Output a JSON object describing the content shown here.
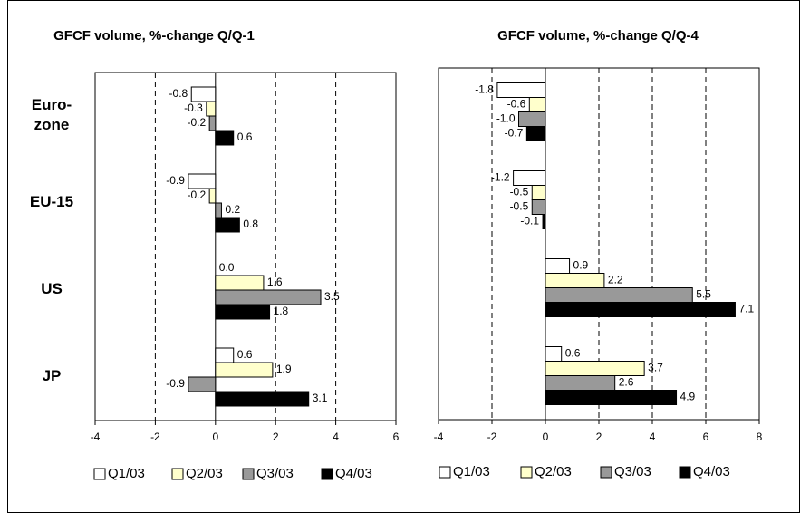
{
  "chart_data": [
    {
      "type": "bar",
      "orientation": "horizontal",
      "title": "GFCF volume, %-change Q/Q-1",
      "categories": [
        "Euro-\nzone",
        "EU-15",
        "US",
        "JP"
      ],
      "series": [
        {
          "name": "Q1/03",
          "color": "#ffffff",
          "values": [
            -0.8,
            -0.9,
            0.0,
            0.6
          ],
          "value_labels": [
            "-0.8",
            "-0.9",
            "0.0",
            "0.6"
          ]
        },
        {
          "name": "Q2/03",
          "color": "#ffffcc",
          "values": [
            -0.3,
            -0.2,
            1.6,
            1.9
          ],
          "value_labels": [
            "-0.3",
            "-0.2",
            "1.6",
            "1.9"
          ]
        },
        {
          "name": "Q3/03",
          "color": "#999999",
          "values": [
            -0.2,
            0.2,
            3.5,
            -0.9
          ],
          "value_labels": [
            "-0.2",
            "0.2",
            "3.5",
            "-0.9"
          ]
        },
        {
          "name": "Q4/03",
          "color": "#000000",
          "values": [
            0.6,
            0.8,
            1.8,
            3.1
          ],
          "value_labels": [
            "0.6",
            "0.8",
            "1.8",
            "3.1"
          ]
        }
      ],
      "xlim": [
        -4,
        6
      ],
      "xticks": [
        -4,
        -2,
        0,
        2,
        4,
        6
      ],
      "grid": true,
      "legend": "bottom"
    },
    {
      "type": "bar",
      "orientation": "horizontal",
      "title": "GFCF volume, %-change Q/Q-4",
      "categories": [
        "Euro-\nzone",
        "EU-15",
        "US",
        "JP"
      ],
      "series": [
        {
          "name": "Q1/03",
          "color": "#ffffff",
          "values": [
            -1.8,
            -1.2,
            0.9,
            0.6
          ],
          "value_labels": [
            "-1.8",
            "-1.2",
            "0.9",
            "0.6"
          ]
        },
        {
          "name": "Q2/03",
          "color": "#ffffcc",
          "values": [
            -0.6,
            -0.5,
            2.2,
            3.7
          ],
          "value_labels": [
            "-0.6",
            "-0.5",
            "2.2",
            "3.7"
          ]
        },
        {
          "name": "Q3/03",
          "color": "#999999",
          "values": [
            -1.0,
            -0.5,
            5.5,
            2.6
          ],
          "value_labels": [
            "-1.0",
            "-0.5",
            "5.5",
            "2.6"
          ]
        },
        {
          "name": "Q4/03",
          "color": "#000000",
          "values": [
            -0.7,
            -0.1,
            7.1,
            4.9
          ],
          "value_labels": [
            "-0.7",
            "-0.1",
            "7.1",
            "4.9"
          ]
        }
      ],
      "xlim": [
        -4,
        8
      ],
      "xticks": [
        -4,
        -2,
        0,
        2,
        4,
        6,
        8
      ],
      "grid": true,
      "legend": "bottom"
    }
  ]
}
